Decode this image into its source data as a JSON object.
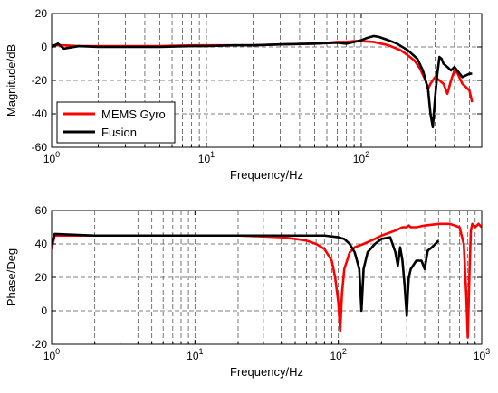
{
  "chart_data": [
    {
      "type": "line",
      "xscale": "log",
      "xlabel": "Frequency/Hz",
      "ylabel": "Magnitude/dB",
      "xlim": [
        1,
        1000
      ],
      "ylim": [
        -60,
        20
      ],
      "xticks": [
        {
          "value": 1,
          "base": "10",
          "exp": "0"
        },
        {
          "value": 10,
          "base": "10",
          "exp": "1"
        },
        {
          "value": 100,
          "base": "10",
          "exp": "2"
        }
      ],
      "yticks": [
        "-60",
        "-40",
        "-20",
        "0",
        "20"
      ],
      "grid": true,
      "legend": {
        "placement": "bottom-left"
      },
      "series": [
        {
          "name": "MEMS Gyro",
          "color": "#ff0000",
          "x": [
            1,
            1.2,
            1.5,
            2,
            3,
            5,
            8,
            10,
            15,
            20,
            30,
            50,
            60,
            70,
            80,
            90,
            100,
            120,
            150,
            180,
            200,
            220,
            240,
            260,
            270,
            280,
            300,
            320,
            340,
            360,
            380,
            400,
            420,
            450,
            500,
            520
          ],
          "y": [
            1,
            1,
            0.5,
            0.5,
            0.5,
            0.5,
            1,
            1,
            1,
            1,
            1.5,
            2,
            2.5,
            3,
            3,
            3.5,
            3.5,
            3,
            1,
            -2,
            -5,
            -8,
            -13,
            -20,
            -25,
            -22,
            -18,
            -20,
            -22,
            -28,
            -20,
            -14,
            -16,
            -22,
            -26,
            -33
          ]
        },
        {
          "name": "Fusion",
          "color": "#000000",
          "x": [
            1,
            1.1,
            1.2,
            1.5,
            2,
            3,
            5,
            8,
            10,
            15,
            20,
            30,
            50,
            70,
            80,
            90,
            100,
            110,
            120,
            130,
            150,
            170,
            200,
            230,
            250,
            270,
            280,
            290,
            300,
            310,
            320,
            330,
            340,
            360,
            380,
            400,
            450,
            500,
            520
          ],
          "y": [
            0,
            2,
            -1,
            0.5,
            0,
            0,
            0,
            0.5,
            0.5,
            1,
            1,
            1.5,
            2,
            2.5,
            2,
            3,
            4,
            5.5,
            6.5,
            6,
            4,
            2,
            -2,
            -7,
            -14,
            -25,
            -40,
            -48,
            -30,
            -16,
            -6,
            -7,
            -10,
            -12,
            -14,
            -12,
            -18,
            -16,
            -16
          ]
        }
      ]
    },
    {
      "type": "line",
      "xscale": "log",
      "xlabel": "Frequency/Hz",
      "ylabel": "Phase/Deg",
      "xlim": [
        1,
        1000
      ],
      "ylim": [
        -20,
        60
      ],
      "xticks": [
        {
          "value": 1,
          "base": "10",
          "exp": "0"
        },
        {
          "value": 10,
          "base": "10",
          "exp": "1"
        },
        {
          "value": 100,
          "base": "10",
          "exp": "2"
        },
        {
          "value": 1000,
          "base": "10",
          "exp": "3"
        }
      ],
      "yticks": [
        "-20",
        "0",
        "20",
        "40",
        "60"
      ],
      "grid": true,
      "series": [
        {
          "name": "MEMS Gyro",
          "color": "#ff0000",
          "x": [
            1,
            1.05,
            2,
            5,
            10,
            20,
            30,
            40,
            50,
            60,
            70,
            80,
            90,
            95,
            100,
            103,
            106,
            110,
            115,
            120,
            130,
            150,
            180,
            200,
            250,
            280,
            300,
            310,
            320,
            350,
            400,
            500,
            600,
            700,
            750,
            780,
            800,
            820,
            840,
            860,
            900,
            950,
            1000
          ],
          "y": [
            37,
            45,
            45,
            45,
            45,
            45,
            44.5,
            44,
            43,
            42,
            40,
            37,
            30,
            20,
            5,
            -12,
            10,
            25,
            30,
            35,
            38,
            40,
            43,
            45,
            48,
            50,
            50,
            51,
            50,
            50,
            51,
            52,
            52,
            50,
            40,
            10,
            -16,
            20,
            48,
            52,
            50,
            52,
            50
          ]
        },
        {
          "name": "Fusion",
          "color": "#000000",
          "x": [
            1,
            1.05,
            2,
            5,
            10,
            20,
            40,
            60,
            80,
            100,
            110,
            120,
            130,
            140,
            145,
            150,
            160,
            180,
            200,
            230,
            250,
            260,
            270,
            280,
            290,
            300,
            305,
            310,
            320,
            350,
            380,
            400,
            420,
            450,
            500
          ],
          "y": [
            40,
            46,
            45,
            45,
            45,
            45,
            45,
            45,
            45,
            44,
            43,
            40,
            35,
            25,
            0,
            25,
            35,
            40,
            43,
            44,
            35,
            27,
            38,
            30,
            15,
            -3,
            10,
            20,
            25,
            30,
            30,
            25,
            36,
            38,
            42
          ]
        }
      ]
    }
  ]
}
